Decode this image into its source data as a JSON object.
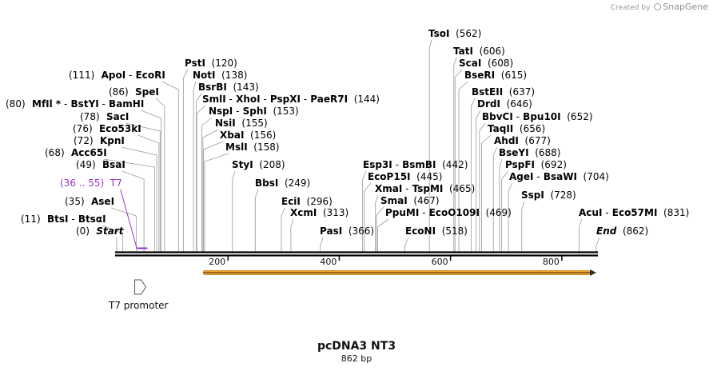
{
  "credit": {
    "prefix": "Created by",
    "brand": "SnapGene"
  },
  "map": {
    "name": "pcDNA3 NT3",
    "length_label": "862 bp",
    "length": 862
  },
  "ruler": {
    "ticks": [
      {
        "value": 200,
        "label": "200"
      },
      {
        "value": 400,
        "label": "400"
      },
      {
        "value": 600,
        "label": "600"
      },
      {
        "value": 800,
        "label": "800"
      }
    ]
  },
  "features": {
    "orf": {
      "start": 160,
      "end": 862,
      "color": "#f4a623"
    },
    "promoter": {
      "label": "T7 promoter",
      "position": 36
    },
    "primer": {
      "label": "T7",
      "range": "(36 .. 55)",
      "start": 36,
      "end": 55,
      "color": "#9933cc"
    }
  },
  "site_rows": [
    {
      "texts": [
        "Start"
      ],
      "pos": "(0)",
      "pos_first": true,
      "italic": true,
      "bp": 0,
      "color": "#000000"
    },
    {
      "texts": [
        "BtsI",
        "BtsαI"
      ],
      "pos": "(11)",
      "pos_first": true,
      "bp": 11,
      "color": "#000000"
    },
    {
      "texts": [
        "AseI"
      ],
      "pos": "(35)",
      "pos_first": true,
      "bp": 35,
      "color": "#000000"
    },
    {
      "texts": [
        "T7"
      ],
      "pos": "(36 .. 55)",
      "pos_first": true,
      "bp": 36,
      "color": "#9933cc",
      "feature": true
    },
    {
      "texts": [
        "BsaI"
      ],
      "pos": "(49)",
      "pos_first": true,
      "bp": 49,
      "color": "#000000"
    },
    {
      "texts": [
        "Acc65I"
      ],
      "pos": "(68)",
      "pos_first": true,
      "bp": 68,
      "color": "#000000"
    },
    {
      "texts": [
        "KpnI"
      ],
      "pos": "(72)",
      "pos_first": true,
      "bp": 72,
      "color": "#000000"
    },
    {
      "texts": [
        "Eco53kI"
      ],
      "pos": "(76)",
      "pos_first": true,
      "bp": 76,
      "color": "#000000"
    },
    {
      "texts": [
        "SacI"
      ],
      "pos": "(78)",
      "pos_first": true,
      "bp": 78,
      "color": "#000000"
    },
    {
      "texts": [
        "MfIl *",
        "BstYI",
        "BamHI"
      ],
      "pos": "(80)",
      "pos_first": true,
      "bp": 80,
      "color": "#000000"
    },
    {
      "texts": [
        "SpeI"
      ],
      "pos": "(86)",
      "pos_first": true,
      "bp": 86,
      "color": "#000000"
    },
    {
      "texts": [
        "ApoI",
        "EcoRI"
      ],
      "pos": "(111)",
      "pos_first": true,
      "bp": 111,
      "color": "#000000"
    },
    {
      "texts": [
        "PstI"
      ],
      "pos": "(120)",
      "bp": 120,
      "color": "#000000"
    },
    {
      "texts": [
        "NotI"
      ],
      "pos": "(138)",
      "bp": 138,
      "color": "#000000"
    },
    {
      "texts": [
        "BsrBI"
      ],
      "pos": "(143)",
      "bp": 143,
      "color": "#000000"
    },
    {
      "texts": [
        "SmlI",
        "XhoI",
        "PspXI",
        "PaeR7I"
      ],
      "pos": "(144)",
      "bp": 144,
      "color": "#000000"
    },
    {
      "texts": [
        "NspI",
        "SphI"
      ],
      "pos": "(153)",
      "bp": 153,
      "color": "#000000"
    },
    {
      "texts": [
        "NsiI"
      ],
      "pos": "(155)",
      "bp": 155,
      "color": "#000000"
    },
    {
      "texts": [
        "XbaI"
      ],
      "pos": "(156)",
      "bp": 156,
      "color": "#000000"
    },
    {
      "texts": [
        "MslI"
      ],
      "pos": "(158)",
      "bp": 158,
      "color": "#000000"
    },
    {
      "texts": [
        "StyI"
      ],
      "pos": "(208)",
      "bp": 208,
      "color": "#000000"
    },
    {
      "texts": [
        "BbsI"
      ],
      "pos": "(249)",
      "bp": 249,
      "color": "#000000"
    },
    {
      "texts": [
        "EciI"
      ],
      "pos": "(296)",
      "bp": 296,
      "color": "#000000"
    },
    {
      "texts": [
        "XcmI"
      ],
      "pos": "(313)",
      "bp": 313,
      "color": "#000000"
    },
    {
      "texts": [
        "PasI"
      ],
      "pos": "(366)",
      "bp": 366,
      "color": "#000000"
    },
    {
      "texts": [
        "Esp3I",
        "BsmBI"
      ],
      "pos": "(442)",
      "bp": 442,
      "color": "#000000"
    },
    {
      "texts": [
        "EcoP15I"
      ],
      "pos": "(445)",
      "bp": 445,
      "color": "#000000"
    },
    {
      "texts": [
        "XmaI",
        "TspMI"
      ],
      "pos": "(465)",
      "bp": 465,
      "color": "#000000"
    },
    {
      "texts": [
        "SmaI"
      ],
      "pos": "(467)",
      "bp": 467,
      "color": "#000000"
    },
    {
      "texts": [
        "PpuMI",
        "EcoO109I"
      ],
      "pos": "(469)",
      "bp": 469,
      "color": "#000000"
    },
    {
      "texts": [
        "EcoNI"
      ],
      "pos": "(518)",
      "bp": 518,
      "color": "#000000"
    },
    {
      "texts": [
        "TsoI"
      ],
      "pos": "(562)",
      "bp": 562,
      "color": "#000000"
    },
    {
      "texts": [
        "TatI"
      ],
      "pos": "(606)",
      "bp": 606,
      "color": "#000000"
    },
    {
      "texts": [
        "ScaI"
      ],
      "pos": "(608)",
      "bp": 608,
      "color": "#000000"
    },
    {
      "texts": [
        "BseRI"
      ],
      "pos": "(615)",
      "bp": 615,
      "color": "#000000"
    },
    {
      "texts": [
        "BstEII"
      ],
      "pos": "(637)",
      "bp": 637,
      "color": "#000000"
    },
    {
      "texts": [
        "DrdI"
      ],
      "pos": "(646)",
      "bp": 646,
      "color": "#000000"
    },
    {
      "texts": [
        "BbvCI",
        "Bpu10I"
      ],
      "pos": "(652)",
      "bp": 652,
      "color": "#000000"
    },
    {
      "texts": [
        "TaqII"
      ],
      "pos": "(656)",
      "bp": 656,
      "color": "#000000"
    },
    {
      "texts": [
        "AhdI"
      ],
      "pos": "(677)",
      "bp": 677,
      "color": "#000000"
    },
    {
      "texts": [
        "BseYI"
      ],
      "pos": "(688)",
      "bp": 688,
      "color": "#000000"
    },
    {
      "texts": [
        "PspFI"
      ],
      "pos": "(692)",
      "bp": 692,
      "color": "#000000"
    },
    {
      "texts": [
        "AgeI",
        "BsaWI"
      ],
      "pos": "(704)",
      "bp": 704,
      "color": "#000000"
    },
    {
      "texts": [
        "SspI"
      ],
      "pos": "(728)",
      "bp": 728,
      "color": "#000000"
    },
    {
      "texts": [
        "AcuI",
        "Eco57MI"
      ],
      "pos": "(831)",
      "bp": 831,
      "color": "#000000"
    },
    {
      "texts": [
        "End"
      ],
      "pos": "(862)",
      "italic": true,
      "bp": 862,
      "color": "#000000"
    }
  ]
}
